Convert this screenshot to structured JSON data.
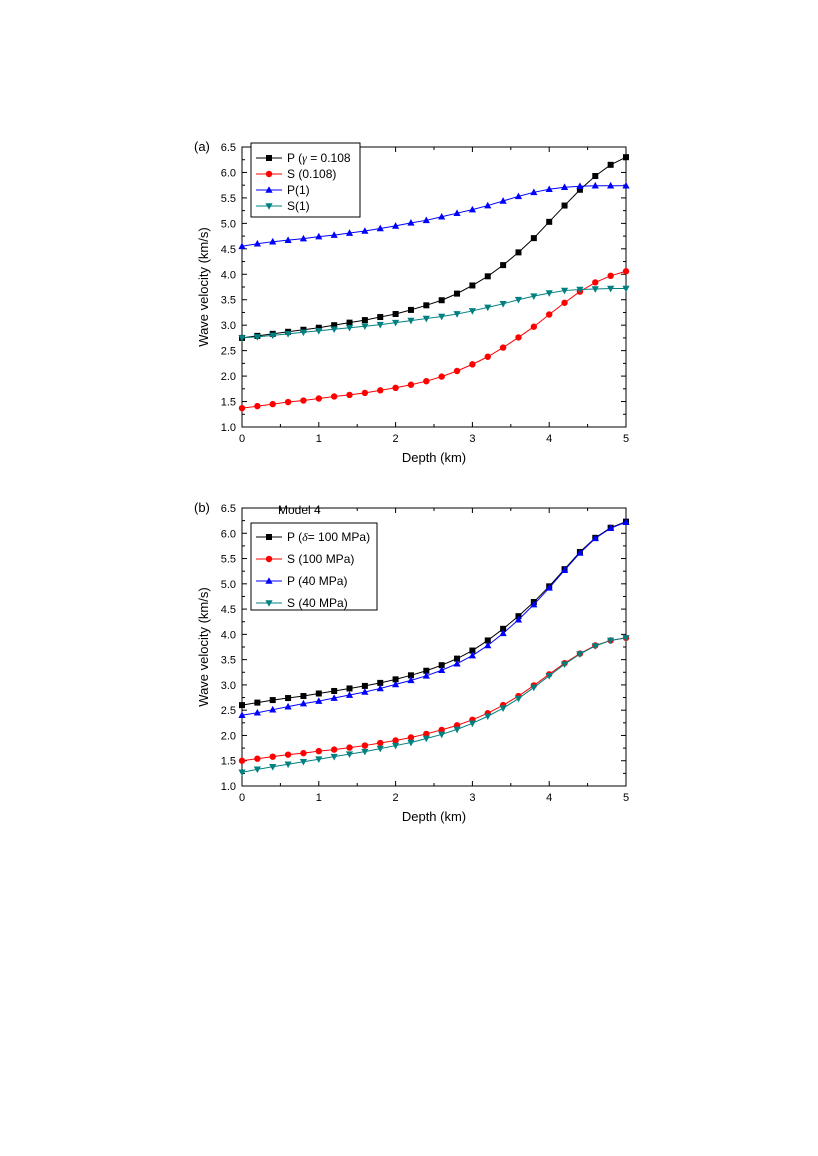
{
  "chart_data": [
    {
      "type": "line",
      "panel_label": "(a)",
      "title": "",
      "xlabel": "Depth (km)",
      "ylabel": "Wave velocity (km/s)",
      "xlim": [
        0,
        5
      ],
      "ylim": [
        1.0,
        6.5
      ],
      "xticks": [
        "0",
        "1",
        "2",
        "3",
        "4",
        "5"
      ],
      "yticks": [
        "1.0",
        "1.5",
        "2.0",
        "2.5",
        "3.0",
        "3.5",
        "4.0",
        "4.5",
        "5.0",
        "5.5",
        "6.0",
        "6.5"
      ],
      "grid": false,
      "legend_position": "top-left",
      "x": [
        0,
        0.2,
        0.4,
        0.6,
        0.8,
        1.0,
        1.2,
        1.4,
        1.6,
        1.8,
        2.0,
        2.2,
        2.4,
        2.6,
        2.8,
        3.0,
        3.2,
        3.4,
        3.6,
        3.8,
        4.0,
        4.2,
        4.4,
        4.6,
        4.8,
        5.0
      ],
      "series": [
        {
          "name": "P (γ = 0.108",
          "legend_label": "P (",
          "legend_symbol": "γ",
          "legend_tail": " = 0.108",
          "color": "#000000",
          "marker": "square",
          "values": [
            2.75,
            2.79,
            2.83,
            2.87,
            2.91,
            2.95,
            3.0,
            3.05,
            3.1,
            3.16,
            3.22,
            3.3,
            3.39,
            3.49,
            3.62,
            3.78,
            3.96,
            4.18,
            4.43,
            4.71,
            5.03,
            5.35,
            5.66,
            5.93,
            6.15,
            6.3
          ]
        },
        {
          "name": "S (0.108)",
          "legend_label": "S (0.108)",
          "color": "#ff0000",
          "marker": "circle",
          "values": [
            1.37,
            1.41,
            1.45,
            1.49,
            1.52,
            1.56,
            1.6,
            1.63,
            1.67,
            1.72,
            1.77,
            1.83,
            1.9,
            1.99,
            2.1,
            2.23,
            2.38,
            2.56,
            2.76,
            2.97,
            3.21,
            3.44,
            3.66,
            3.84,
            3.97,
            4.06
          ]
        },
        {
          "name": "P(1)",
          "legend_label": "P(1)",
          "color": "#0000ff",
          "marker": "triangle-up",
          "values": [
            4.55,
            4.6,
            4.64,
            4.67,
            4.7,
            4.74,
            4.77,
            4.81,
            4.85,
            4.9,
            4.95,
            5.01,
            5.06,
            5.13,
            5.2,
            5.27,
            5.35,
            5.44,
            5.53,
            5.61,
            5.67,
            5.71,
            5.73,
            5.74,
            5.74,
            5.74
          ]
        },
        {
          "name": "S(1)",
          "legend_label": "S(1)",
          "color": "#008080",
          "marker": "triangle-down",
          "values": [
            2.75,
            2.77,
            2.8,
            2.83,
            2.86,
            2.89,
            2.92,
            2.95,
            2.98,
            3.01,
            3.05,
            3.09,
            3.13,
            3.17,
            3.22,
            3.28,
            3.35,
            3.42,
            3.5,
            3.57,
            3.63,
            3.68,
            3.7,
            3.71,
            3.72,
            3.72
          ]
        }
      ]
    },
    {
      "type": "line",
      "panel_label": "(b)",
      "title": "Model 4",
      "xlabel": "Depth (km)",
      "ylabel": "Wave velocity (km/s)",
      "xlim": [
        0,
        5
      ],
      "ylim": [
        1.0,
        6.5
      ],
      "xticks": [
        "0",
        "1",
        "2",
        "3",
        "4",
        "5"
      ],
      "yticks": [
        "1.0",
        "1.5",
        "2.0",
        "2.5",
        "3.0",
        "3.5",
        "4.0",
        "4.5",
        "5.0",
        "5.5",
        "6.0",
        "6.5"
      ],
      "grid": false,
      "legend_position": "top-left",
      "x": [
        0,
        0.2,
        0.4,
        0.6,
        0.8,
        1.0,
        1.2,
        1.4,
        1.6,
        1.8,
        2.0,
        2.2,
        2.4,
        2.6,
        2.8,
        3.0,
        3.2,
        3.4,
        3.6,
        3.8,
        4.0,
        4.2,
        4.4,
        4.6,
        4.8,
        5.0
      ],
      "series": [
        {
          "name": "P (δ= 100 MPa)",
          "legend_label": "P (",
          "legend_symbol": "δ",
          "legend_tail": "= 100 MPa)",
          "color": "#000000",
          "marker": "square",
          "values": [
            2.6,
            2.65,
            2.7,
            2.74,
            2.78,
            2.83,
            2.88,
            2.93,
            2.98,
            3.04,
            3.11,
            3.19,
            3.28,
            3.39,
            3.52,
            3.68,
            3.88,
            4.11,
            4.36,
            4.64,
            4.95,
            5.29,
            5.63,
            5.91,
            6.11,
            6.23
          ]
        },
        {
          "name": "S (100 MPa)",
          "legend_label": "S (100 MPa)",
          "color": "#ff0000",
          "marker": "circle",
          "values": [
            1.5,
            1.54,
            1.58,
            1.62,
            1.65,
            1.69,
            1.72,
            1.76,
            1.8,
            1.85,
            1.9,
            1.96,
            2.03,
            2.11,
            2.2,
            2.31,
            2.44,
            2.6,
            2.78,
            2.99,
            3.21,
            3.43,
            3.62,
            3.78,
            3.88,
            3.93
          ]
        },
        {
          "name": "P (40 MPa)",
          "legend_label": "P (40 MPa)",
          "color": "#0000ff",
          "marker": "triangle-up",
          "values": [
            2.4,
            2.45,
            2.51,
            2.57,
            2.63,
            2.68,
            2.74,
            2.8,
            2.86,
            2.93,
            3.01,
            3.09,
            3.18,
            3.29,
            3.42,
            3.58,
            3.78,
            4.02,
            4.29,
            4.59,
            4.92,
            5.27,
            5.61,
            5.9,
            6.1,
            6.22
          ]
        },
        {
          "name": "S (40 MPa)",
          "legend_label": "S (40 MPa)",
          "color": "#008080",
          "marker": "triangle-down",
          "values": [
            1.27,
            1.33,
            1.38,
            1.43,
            1.48,
            1.53,
            1.58,
            1.63,
            1.68,
            1.74,
            1.8,
            1.86,
            1.94,
            2.02,
            2.12,
            2.24,
            2.38,
            2.54,
            2.73,
            2.95,
            3.18,
            3.41,
            3.61,
            3.77,
            3.88,
            3.93
          ]
        }
      ]
    }
  ]
}
